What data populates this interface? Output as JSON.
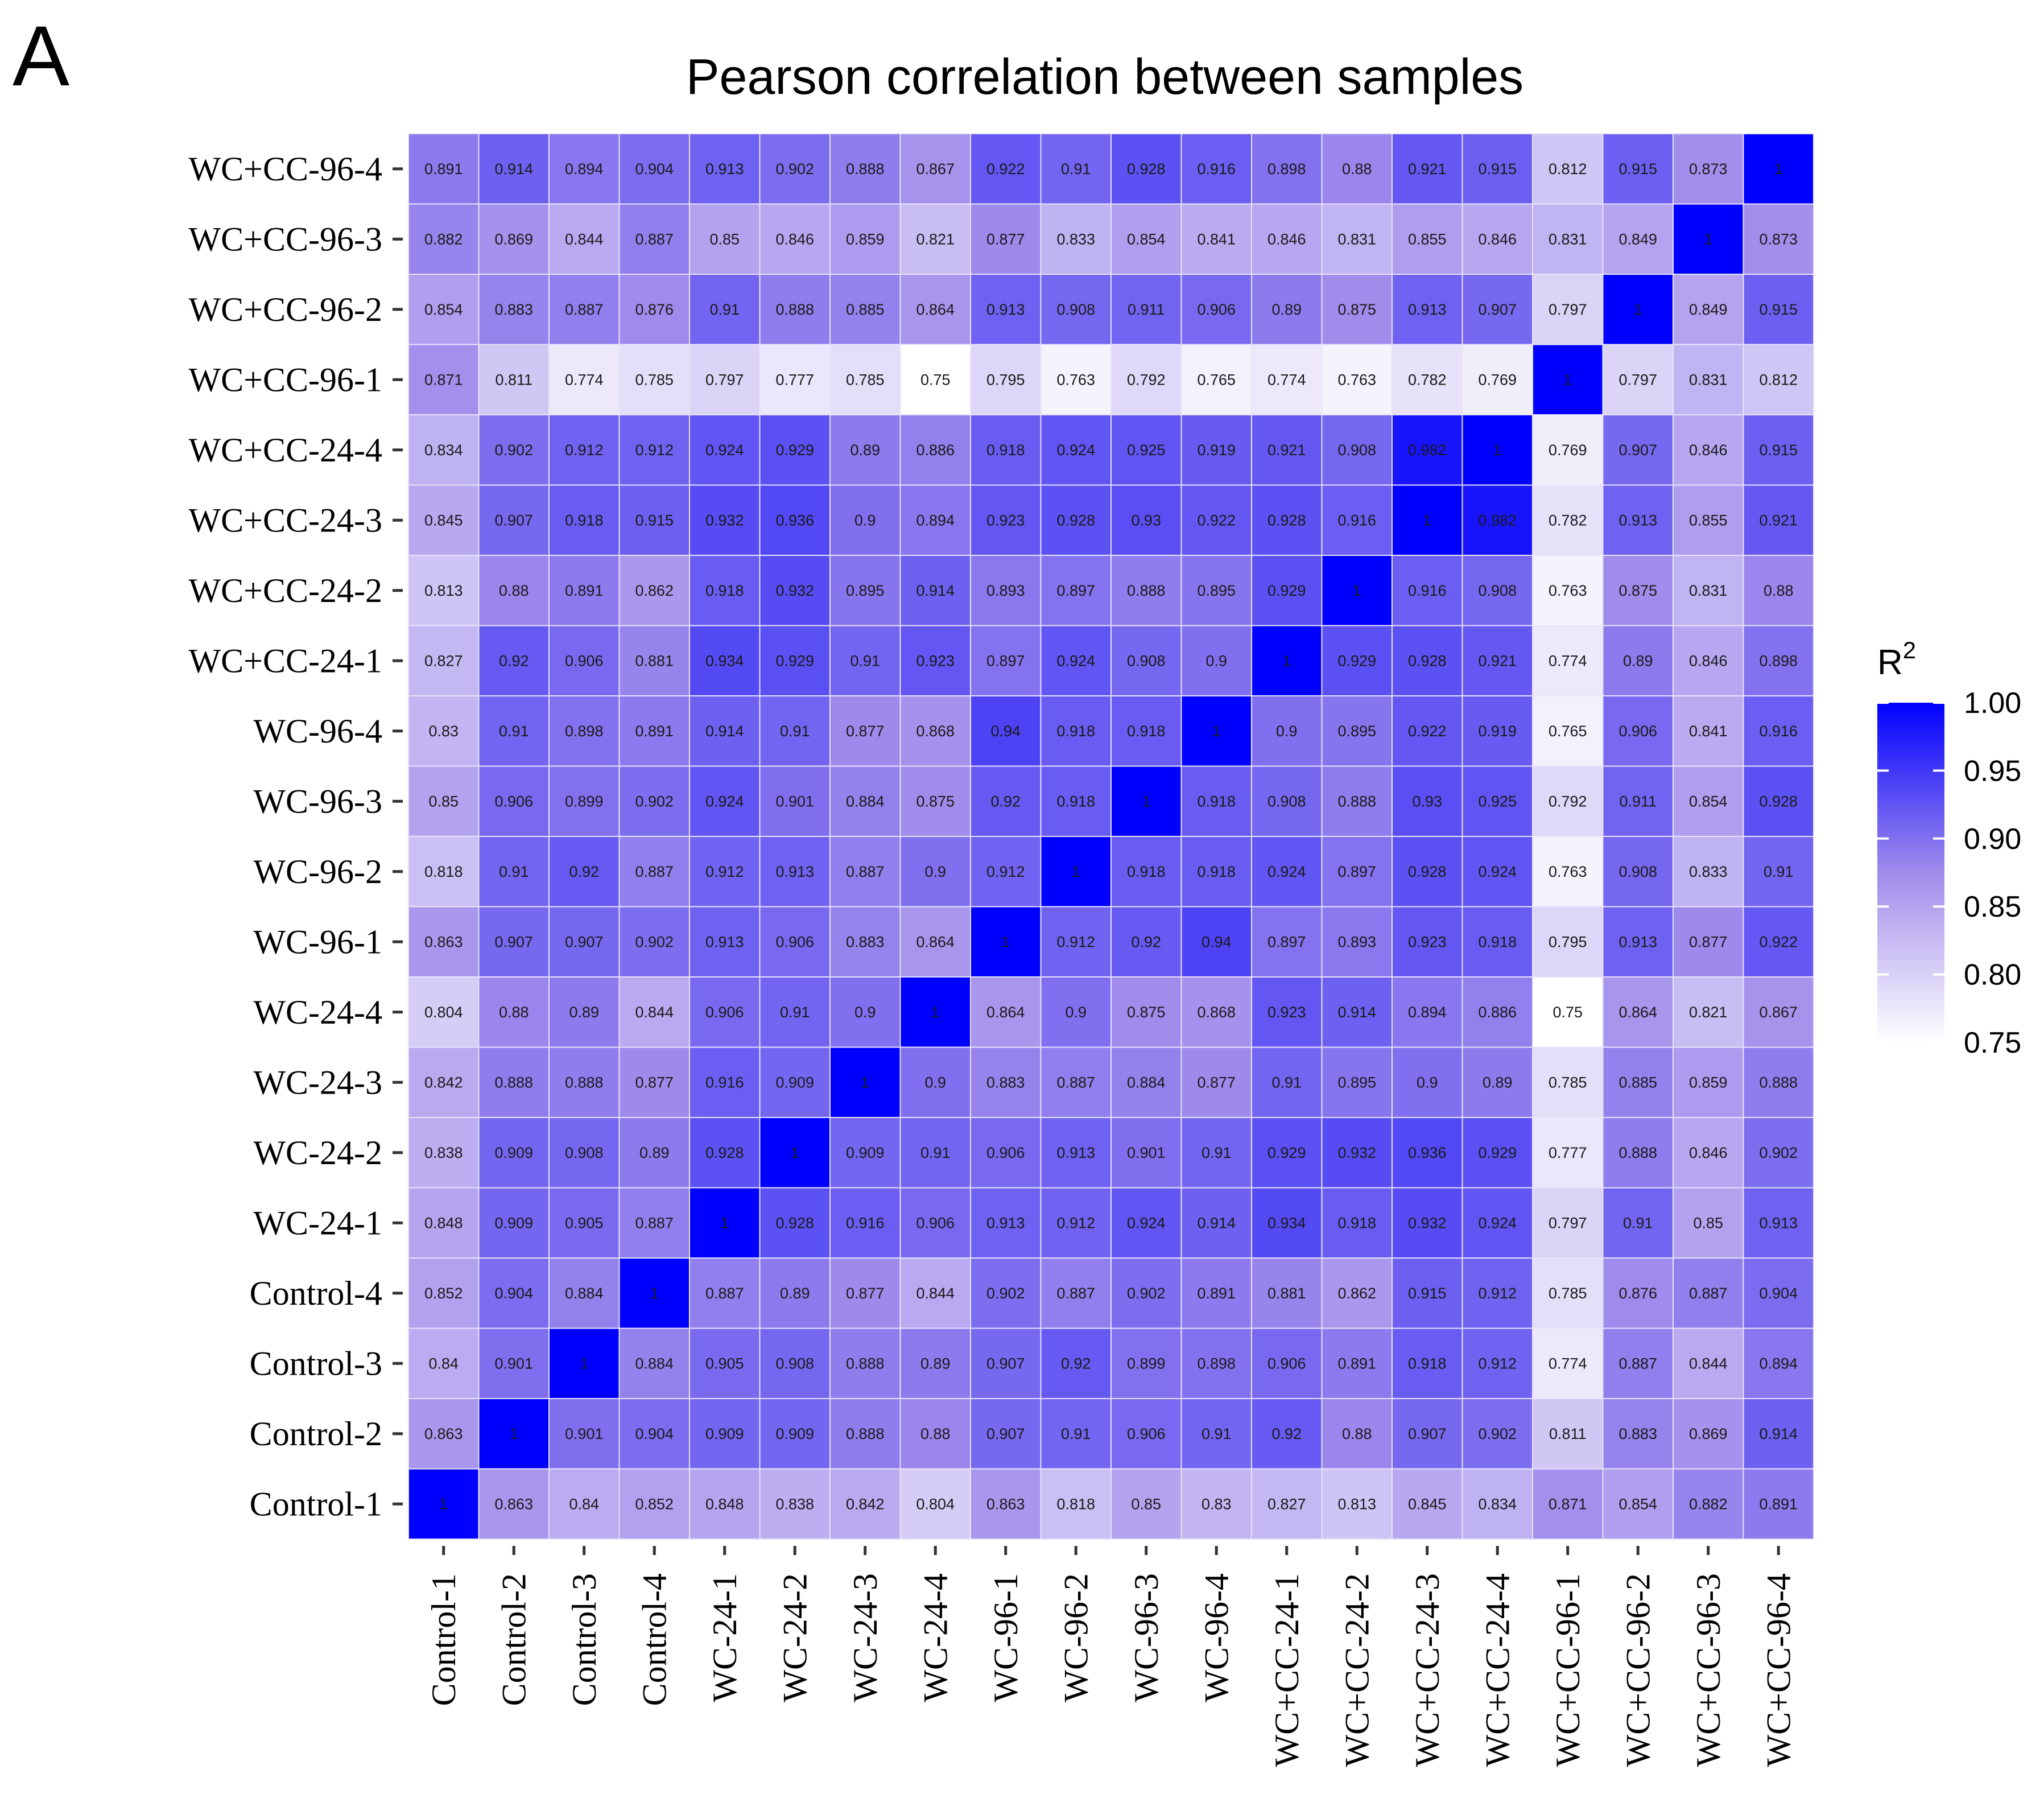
{
  "panel_letter": "A",
  "chart_data": {
    "type": "heatmap",
    "title": "Pearson correlation between samples",
    "xlabel": "",
    "ylabel": "",
    "samples": [
      "Control-1",
      "Control-2",
      "Control-3",
      "Control-4",
      "WC-24-1",
      "WC-24-2",
      "WC-24-3",
      "WC-24-4",
      "WC-96-1",
      "WC-96-2",
      "WC-96-3",
      "WC-96-4",
      "WC+CC-24-1",
      "WC+CC-24-2",
      "WC+CC-24-3",
      "WC+CC-24-4",
      "WC+CC-96-1",
      "WC+CC-96-2",
      "WC+CC-96-3",
      "WC+CC-96-4"
    ],
    "matrix": [
      [
        "1",
        "0.863",
        "0.84",
        "0.852",
        "0.848",
        "0.838",
        "0.842",
        "0.804",
        "0.863",
        "0.818",
        "0.85",
        "0.83",
        "0.827",
        "0.813",
        "0.845",
        "0.834",
        "0.871",
        "0.854",
        "0.882",
        "0.891"
      ],
      [
        "0.863",
        "1",
        "0.901",
        "0.904",
        "0.909",
        "0.909",
        "0.888",
        "0.88",
        "0.907",
        "0.91",
        "0.906",
        "0.91",
        "0.92",
        "0.88",
        "0.907",
        "0.902",
        "0.811",
        "0.883",
        "0.869",
        "0.914"
      ],
      [
        "0.84",
        "0.901",
        "1",
        "0.884",
        "0.905",
        "0.908",
        "0.888",
        "0.89",
        "0.907",
        "0.92",
        "0.899",
        "0.898",
        "0.906",
        "0.891",
        "0.918",
        "0.912",
        "0.774",
        "0.887",
        "0.844",
        "0.894"
      ],
      [
        "0.852",
        "0.904",
        "0.884",
        "1",
        "0.887",
        "0.89",
        "0.877",
        "0.844",
        "0.902",
        "0.887",
        "0.902",
        "0.891",
        "0.881",
        "0.862",
        "0.915",
        "0.912",
        "0.785",
        "0.876",
        "0.887",
        "0.904"
      ],
      [
        "0.848",
        "0.909",
        "0.905",
        "0.887",
        "1",
        "0.928",
        "0.916",
        "0.906",
        "0.913",
        "0.912",
        "0.924",
        "0.914",
        "0.934",
        "0.918",
        "0.932",
        "0.924",
        "0.797",
        "0.91",
        "0.85",
        "0.913"
      ],
      [
        "0.838",
        "0.909",
        "0.908",
        "0.89",
        "0.928",
        "1",
        "0.909",
        "0.91",
        "0.906",
        "0.913",
        "0.901",
        "0.91",
        "0.929",
        "0.932",
        "0.936",
        "0.929",
        "0.777",
        "0.888",
        "0.846",
        "0.902"
      ],
      [
        "0.842",
        "0.888",
        "0.888",
        "0.877",
        "0.916",
        "0.909",
        "1",
        "0.9",
        "0.883",
        "0.887",
        "0.884",
        "0.877",
        "0.91",
        "0.895",
        "0.9",
        "0.89",
        "0.785",
        "0.885",
        "0.859",
        "0.888"
      ],
      [
        "0.804",
        "0.88",
        "0.89",
        "0.844",
        "0.906",
        "0.91",
        "0.9",
        "1",
        "0.864",
        "0.9",
        "0.875",
        "0.868",
        "0.923",
        "0.914",
        "0.894",
        "0.886",
        "0.75",
        "0.864",
        "0.821",
        "0.867"
      ],
      [
        "0.863",
        "0.907",
        "0.907",
        "0.902",
        "0.913",
        "0.906",
        "0.883",
        "0.864",
        "1",
        "0.912",
        "0.92",
        "0.94",
        "0.897",
        "0.893",
        "0.923",
        "0.918",
        "0.795",
        "0.913",
        "0.877",
        "0.922"
      ],
      [
        "0.818",
        "0.91",
        "0.92",
        "0.887",
        "0.912",
        "0.913",
        "0.887",
        "0.9",
        "0.912",
        "1",
        "0.918",
        "0.918",
        "0.924",
        "0.897",
        "0.928",
        "0.924",
        "0.763",
        "0.908",
        "0.833",
        "0.91"
      ],
      [
        "0.85",
        "0.906",
        "0.899",
        "0.902",
        "0.924",
        "0.901",
        "0.884",
        "0.875",
        "0.92",
        "0.918",
        "1",
        "0.918",
        "0.908",
        "0.888",
        "0.93",
        "0.925",
        "0.792",
        "0.911",
        "0.854",
        "0.928"
      ],
      [
        "0.83",
        "0.91",
        "0.898",
        "0.891",
        "0.914",
        "0.91",
        "0.877",
        "0.868",
        "0.94",
        "0.918",
        "0.918",
        "1",
        "0.9",
        "0.895",
        "0.922",
        "0.919",
        "0.765",
        "0.906",
        "0.841",
        "0.916"
      ],
      [
        "0.827",
        "0.92",
        "0.906",
        "0.881",
        "0.934",
        "0.929",
        "0.91",
        "0.923",
        "0.897",
        "0.924",
        "0.908",
        "0.9",
        "1",
        "0.929",
        "0.928",
        "0.921",
        "0.774",
        "0.89",
        "0.846",
        "0.898"
      ],
      [
        "0.813",
        "0.88",
        "0.891",
        "0.862",
        "0.918",
        "0.932",
        "0.895",
        "0.914",
        "0.893",
        "0.897",
        "0.888",
        "0.895",
        "0.929",
        "1",
        "0.916",
        "0.908",
        "0.763",
        "0.875",
        "0.831",
        "0.88"
      ],
      [
        "0.845",
        "0.907",
        "0.918",
        "0.915",
        "0.932",
        "0.936",
        "0.9",
        "0.894",
        "0.923",
        "0.928",
        "0.93",
        "0.922",
        "0.928",
        "0.916",
        "1",
        "0.982",
        "0.782",
        "0.913",
        "0.855",
        "0.921"
      ],
      [
        "0.834",
        "0.902",
        "0.912",
        "0.912",
        "0.924",
        "0.929",
        "0.89",
        "0.886",
        "0.918",
        "0.924",
        "0.925",
        "0.919",
        "0.921",
        "0.908",
        "0.982",
        "1",
        "0.769",
        "0.907",
        "0.846",
        "0.915"
      ],
      [
        "0.871",
        "0.811",
        "0.774",
        "0.785",
        "0.797",
        "0.777",
        "0.785",
        "0.75",
        "0.795",
        "0.763",
        "0.792",
        "0.765",
        "0.774",
        "0.763",
        "0.782",
        "0.769",
        "1",
        "0.797",
        "0.831",
        "0.812"
      ],
      [
        "0.854",
        "0.883",
        "0.887",
        "0.876",
        "0.91",
        "0.888",
        "0.885",
        "0.864",
        "0.913",
        "0.908",
        "0.911",
        "0.906",
        "0.89",
        "0.875",
        "0.913",
        "0.907",
        "0.797",
        "1",
        "0.849",
        "0.915"
      ],
      [
        "0.882",
        "0.869",
        "0.844",
        "0.887",
        "0.85",
        "0.846",
        "0.859",
        "0.821",
        "0.877",
        "0.833",
        "0.854",
        "0.841",
        "0.846",
        "0.831",
        "0.855",
        "0.846",
        "0.831",
        "0.849",
        "1",
        "0.873"
      ],
      [
        "0.891",
        "0.914",
        "0.894",
        "0.904",
        "0.913",
        "0.902",
        "0.888",
        "0.867",
        "0.922",
        "0.91",
        "0.928",
        "0.916",
        "0.898",
        "0.88",
        "0.921",
        "0.915",
        "0.812",
        "0.915",
        "0.873",
        "1"
      ]
    ],
    "legend": {
      "title": "R",
      "title_superscript": "2",
      "min": 0.75,
      "max": 1.0,
      "ticks": [
        "1.00",
        "0.95",
        "0.90",
        "0.85",
        "0.80",
        "0.75"
      ],
      "tick_values": [
        1.0,
        0.95,
        0.9,
        0.85,
        0.8,
        0.75
      ],
      "color_low": "#ffffff",
      "color_mid": "#a08ceb",
      "color_high": "#0000ff",
      "placement": "right"
    }
  }
}
